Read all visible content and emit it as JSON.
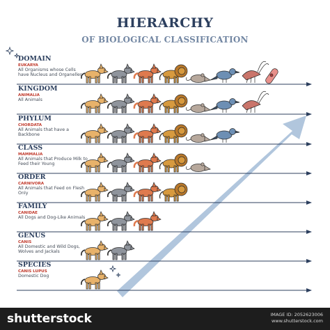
{
  "title": "HIERARCHY",
  "subtitle": "OF BIOLOGICAL CLASSIFICATION",
  "rows": [
    {
      "rank": "DOMAIN",
      "taxon": "EUKARYA",
      "desc": "All Organisms whose Cells have Nucleus and Organelles",
      "animals": [
        "dog",
        "wolf",
        "fox",
        "lion",
        "rat",
        "bird",
        "shrimp",
        "microbe"
      ]
    },
    {
      "rank": "KINGDOM",
      "taxon": "ANIMALIA",
      "desc": "All Animals",
      "animals": [
        "dog",
        "wolf",
        "fox",
        "lion",
        "rat",
        "bird",
        "shrimp"
      ]
    },
    {
      "rank": "PHYLUM",
      "taxon": "CHORDATA",
      "desc": "All Animals that have a Backbone",
      "animals": [
        "dog",
        "wolf",
        "fox",
        "lion",
        "rat",
        "bird"
      ]
    },
    {
      "rank": "CLASS",
      "taxon": "MAMMALIA",
      "desc": "All Animals that Produce Milk to Feed their Young",
      "animals": [
        "dog",
        "wolf",
        "fox",
        "lion",
        "rat"
      ]
    },
    {
      "rank": "ORDER",
      "taxon": "CARNIVORA",
      "desc": "All Animals that Feed on Flesh Only",
      "animals": [
        "dog",
        "wolf",
        "fox",
        "lion"
      ]
    },
    {
      "rank": "FAMILY",
      "taxon": "CANIDAE",
      "desc": "All Dogs and Dog-Like Animals",
      "animals": [
        "dog",
        "wolf",
        "fox"
      ]
    },
    {
      "rank": "GENUS",
      "taxon": "CANIS",
      "desc": "All Domestic and Wild Dogs, Wolves and Jackals",
      "animals": [
        "dog",
        "wolf"
      ]
    },
    {
      "rank": "SPECIES",
      "taxon": "CANIS LUPUS",
      "desc": "Domestic Dog",
      "animals": [
        "dog"
      ]
    }
  ],
  "animal_colors": {
    "dog": "#e8b26a",
    "wolf": "#8f949c",
    "fox": "#df7a4e",
    "lion": "#d79a3f",
    "rat": "#b7a89c",
    "bird": "#6d8fb4",
    "shrimp": "#c9746a",
    "microbe": "#e78f8a"
  },
  "colors": {
    "line": "#2c3f5e",
    "arrow": "#a9c0d9",
    "title": "#2c3f5e",
    "accent": "#c0392b"
  },
  "footer": {
    "brand": "shutterstock",
    "image_id": "IMAGE ID: 2052623006",
    "site": "www.shutterstock.com"
  }
}
